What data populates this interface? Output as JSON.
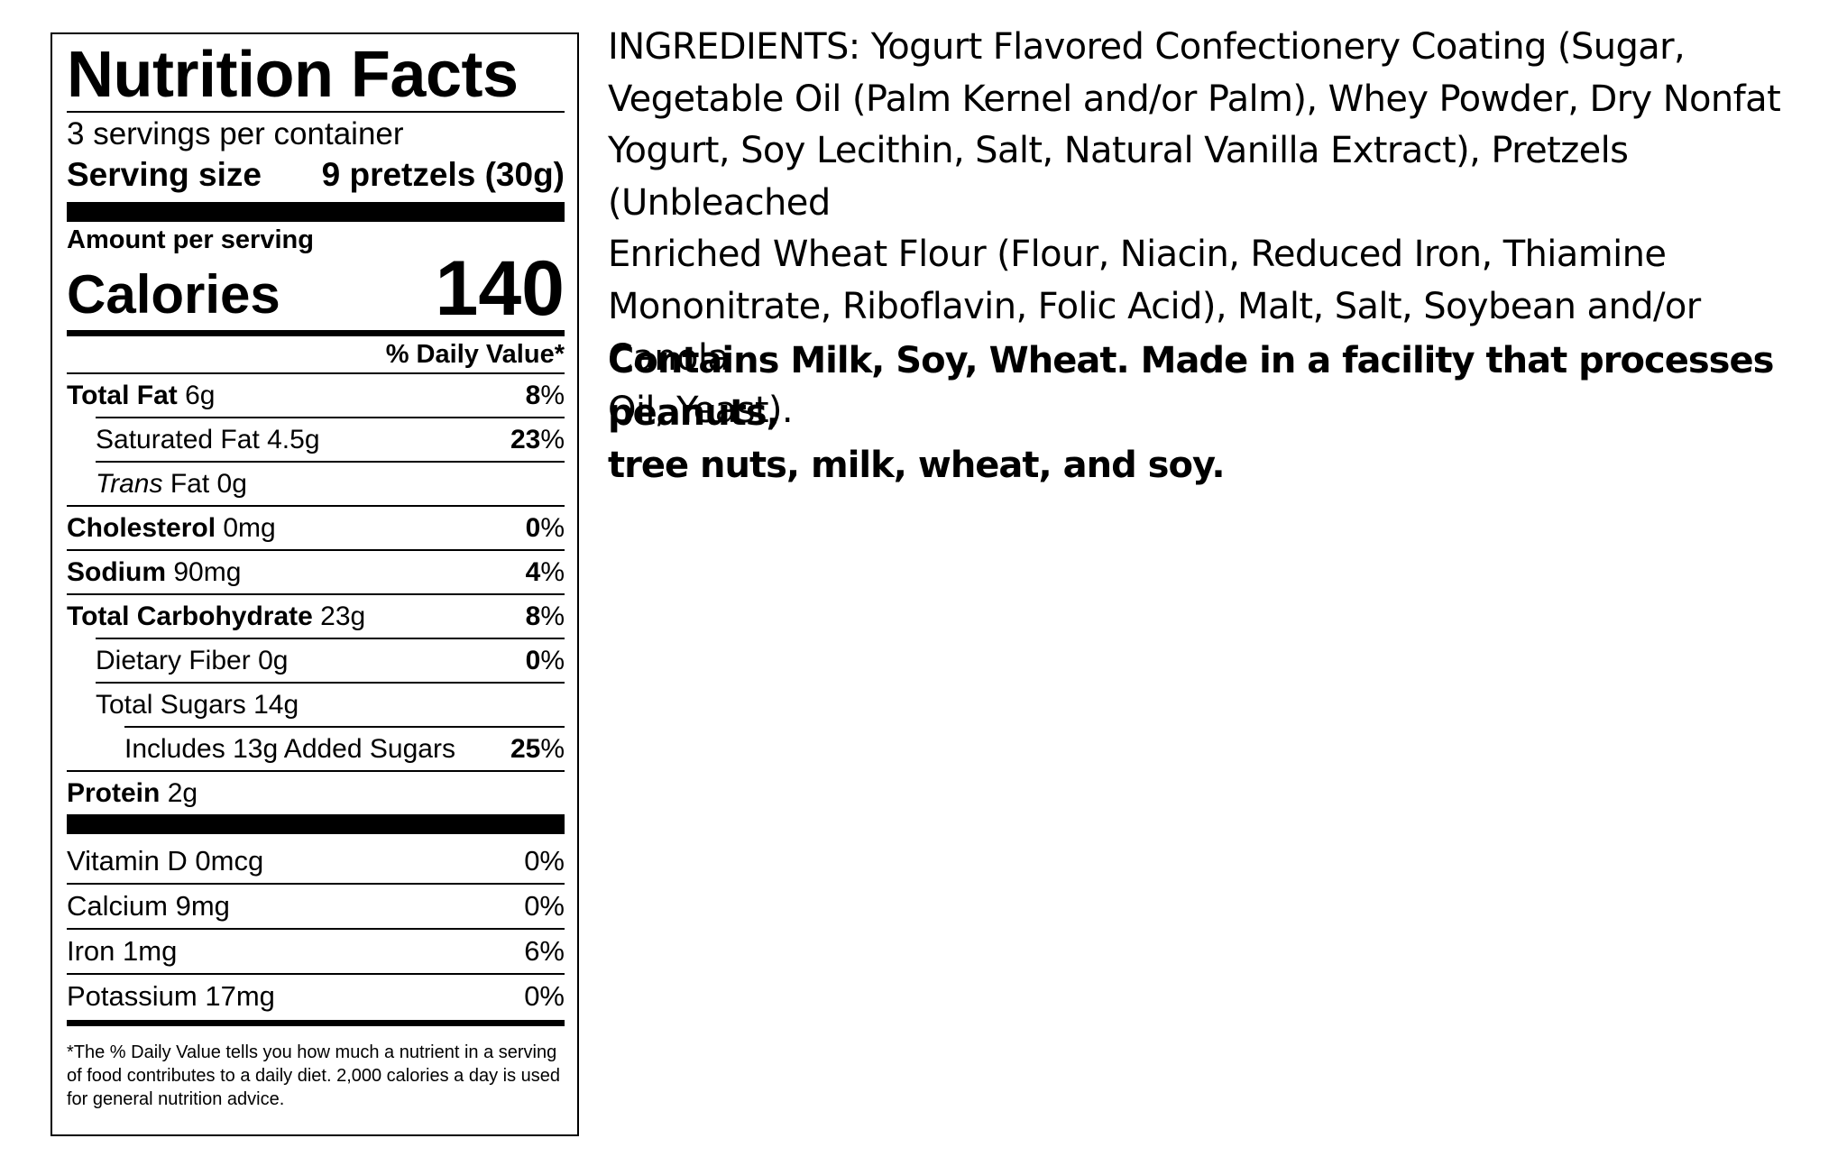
{
  "nutrition_facts": {
    "title": "Nutrition Facts",
    "servings_per_container": "3 servings per container",
    "serving_size_label": "Serving size",
    "serving_size_value": "9 pretzels (30g)",
    "amount_per_serving": "Amount per serving",
    "calories_label": "Calories",
    "calories_value": "140",
    "daily_value_header": "% Daily Value*",
    "rows": [
      {
        "name": "Total Fat",
        "amount": "6g",
        "dv_num": "8",
        "dv_pct": "%"
      },
      {
        "name": "Saturated Fat",
        "amount": "4.5g",
        "dv_num": "23",
        "dv_pct": "%"
      },
      {
        "name_italic": "Trans",
        "name": "Fat",
        "amount": "0g"
      },
      {
        "name": "Cholesterol",
        "amount": "0mg",
        "dv_num": "0",
        "dv_pct": "%"
      },
      {
        "name": "Sodium",
        "amount": "90mg",
        "dv_num": "4",
        "dv_pct": "%"
      },
      {
        "name": "Total Carbohydrate",
        "amount": "23g",
        "dv_num": "8",
        "dv_pct": "%"
      },
      {
        "name": "Dietary Fiber",
        "amount": "0g",
        "dv_num": "0",
        "dv_pct": "%"
      },
      {
        "name": "Total Sugars",
        "amount": "14g"
      },
      {
        "label": "Includes 13g Added Sugars",
        "dv_num": "25",
        "dv_pct": "%"
      },
      {
        "name": "Protein",
        "amount": "2g"
      }
    ],
    "vitamins": [
      {
        "label": "Vitamin D 0mcg",
        "dv": "0%"
      },
      {
        "label": "Calcium 9mg",
        "dv": "0%"
      },
      {
        "label": "Iron 1mg",
        "dv": "6%"
      },
      {
        "label": "Potassium 17mg",
        "dv": "0%"
      }
    ],
    "footnote": "*The % Daily Value tells you how much a nutrient in a serving of food contributes to a daily diet. 2,000 calories a day is used for general nutrition advice."
  },
  "ingredients": {
    "lines": [
      "INGREDIENTS: Yogurt Flavored Confectionery Coating (Sugar,",
      "Vegetable Oil (Palm Kernel and/or Palm), Whey Powder, Dry Nonfat",
      "Yogurt, Soy Lecithin, Salt, Natural Vanilla Extract), Pretzels (Unbleached",
      "Enriched Wheat Flour (Flour, Niacin, Reduced Iron, Thiamine",
      "Mononitrate, Riboflavin, Folic Acid), Malt, Salt, Soybean and/or Canola",
      "Oil, Yeast)."
    ],
    "allergen_lines": [
      "Contains Milk, Soy, Wheat. Made in a facility that processes peanuts,",
      "tree nuts, milk, wheat, and soy."
    ]
  }
}
